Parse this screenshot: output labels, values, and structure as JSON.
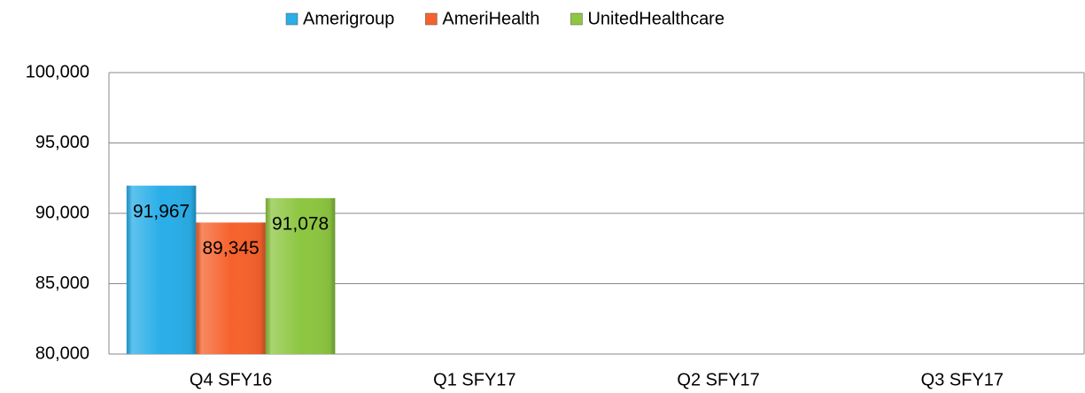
{
  "chart_data": {
    "type": "bar",
    "categories": [
      "Q4 SFY16",
      "Q1 SFY17",
      "Q2 SFY17",
      "Q3 SFY17"
    ],
    "series": [
      {
        "name": "Amerigroup",
        "color": "#2aaee8",
        "values": [
          91967,
          null,
          null,
          null
        ],
        "value_labels": [
          "91,967",
          null,
          null,
          null
        ]
      },
      {
        "name": "AmeriHealth",
        "color": "#f6622d",
        "values": [
          89345,
          null,
          null,
          null
        ],
        "value_labels": [
          "89,345",
          null,
          null,
          null
        ]
      },
      {
        "name": "UnitedHealthcare",
        "color": "#8dc641",
        "values": [
          91078,
          null,
          null,
          null
        ],
        "value_labels": [
          "91,078",
          null,
          null,
          null
        ]
      }
    ],
    "ylim": [
      80000,
      100000
    ],
    "yticks": [
      {
        "value": 80000,
        "label": "80,000"
      },
      {
        "value": 85000,
        "label": "85,000"
      },
      {
        "value": 90000,
        "label": "90,000"
      },
      {
        "value": 95000,
        "label": "95,000"
      },
      {
        "value": 100000,
        "label": "100,000"
      }
    ],
    "grid": true,
    "legend": "top"
  }
}
